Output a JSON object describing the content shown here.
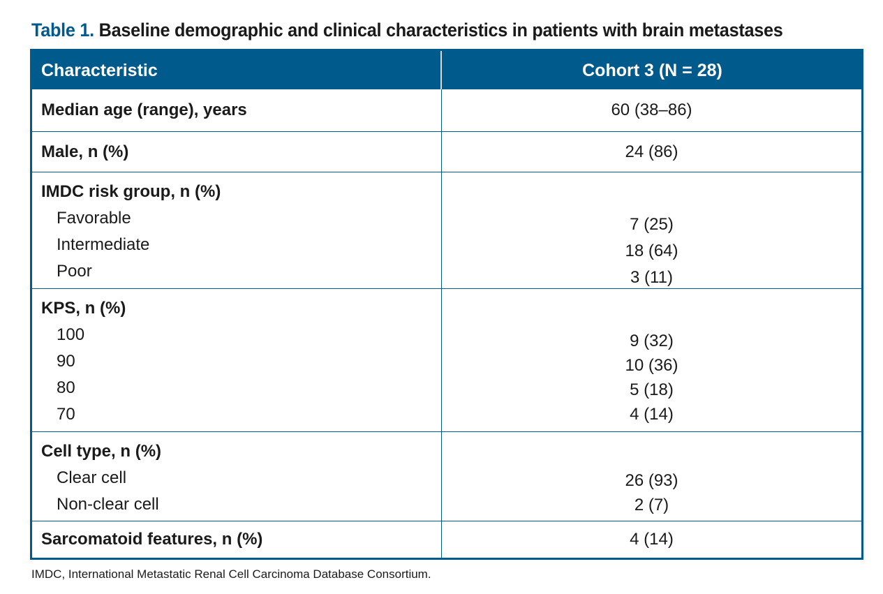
{
  "title": {
    "label": "Table 1.",
    "text": "Baseline demographic and clinical characteristics in patients with brain metastases"
  },
  "table": {
    "header": {
      "characteristic": "Characteristic",
      "cohort": "Cohort 3 (N = 28)"
    },
    "age": {
      "label": "Median age (range), years",
      "value": "60 (38–86)"
    },
    "male": {
      "label": "Male, n (%)",
      "value": "24 (86)"
    },
    "imdc": {
      "label": "IMDC risk group, n (%)",
      "items": [
        {
          "label": "Favorable",
          "value": "7 (25)"
        },
        {
          "label": "Intermediate",
          "value": "18 (64)"
        },
        {
          "label": "Poor",
          "value": "3 (11)"
        }
      ]
    },
    "kps": {
      "label": "KPS, n (%)",
      "items": [
        {
          "label": "100",
          "value": "9 (32)"
        },
        {
          "label": "90",
          "value": "10 (36)"
        },
        {
          "label": "80",
          "value": "5 (18)"
        },
        {
          "label": "70",
          "value": "4 (14)"
        }
      ]
    },
    "cell_type": {
      "label": "Cell type, n (%)",
      "items": [
        {
          "label": "Clear cell",
          "value": "26 (93)"
        },
        {
          "label": "Non-clear cell",
          "value": "2 (7)"
        }
      ]
    },
    "sarcomatoid": {
      "label": "Sarcomatoid features, n (%)",
      "value": "4 (14)"
    }
  },
  "footnote": "IMDC, International Metastatic Renal Cell Carcinoma Database Consortium.",
  "colors": {
    "accent": "#005a8c",
    "header_text": "#ffffff",
    "body_text": "#1a1a1a"
  }
}
